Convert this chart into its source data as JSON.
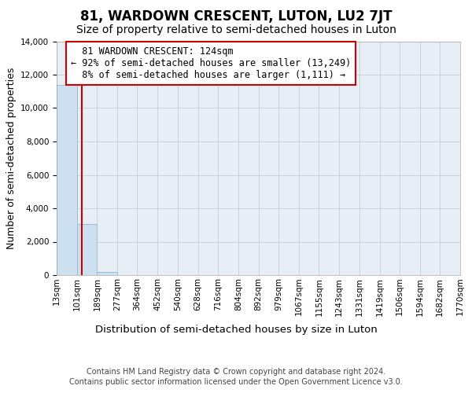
{
  "title": "81, WARDOWN CRESCENT, LUTON, LU2 7JT",
  "subtitle": "Size of property relative to semi-detached houses in Luton",
  "xlabel": "Distribution of semi-detached houses by size in Luton",
  "ylabel": "Number of semi-detached properties",
  "property_size_sqm": 124,
  "property_label": "81 WARDOWN CRESCENT: 124sqm",
  "pct_smaller": 92,
  "count_smaller": 13249,
  "pct_larger": 8,
  "count_larger": 1111,
  "bar_color": "#cce0f0",
  "bar_edge_color": "#9bbdd4",
  "highlight_line_color": "#cc0000",
  "annotation_box_edge_color": "#cc0000",
  "annotation_box_face_color": "#ffffff",
  "plot_bg_color": "#e8eef5",
  "ylim": [
    0,
    14000
  ],
  "yticks": [
    0,
    2000,
    4000,
    6000,
    8000,
    10000,
    12000,
    14000
  ],
  "bin_edges": [
    13,
    101,
    189,
    277,
    364,
    452,
    540,
    628,
    716,
    804,
    892,
    979,
    1067,
    1155,
    1243,
    1331,
    1419,
    1506,
    1594,
    1682,
    1770
  ],
  "bin_labels": [
    "13sqm",
    "101sqm",
    "189sqm",
    "277sqm",
    "364sqm",
    "452sqm",
    "540sqm",
    "628sqm",
    "716sqm",
    "804sqm",
    "892sqm",
    "979sqm",
    "1067sqm",
    "1155sqm",
    "1243sqm",
    "1331sqm",
    "1419sqm",
    "1506sqm",
    "1594sqm",
    "1682sqm",
    "1770sqm"
  ],
  "bar_heights": [
    11400,
    3050,
    200,
    0,
    0,
    0,
    0,
    0,
    0,
    0,
    0,
    0,
    0,
    0,
    0,
    0,
    0,
    0,
    0,
    0
  ],
  "footer_line1": "Contains HM Land Registry data © Crown copyright and database right 2024.",
  "footer_line2": "Contains public sector information licensed under the Open Government Licence v3.0.",
  "grid_color": "#b8c8d8",
  "title_fontsize": 12,
  "subtitle_fontsize": 10,
  "axis_label_fontsize": 9,
  "tick_fontsize": 7.5,
  "annotation_fontsize": 8.5,
  "footer_fontsize": 7
}
